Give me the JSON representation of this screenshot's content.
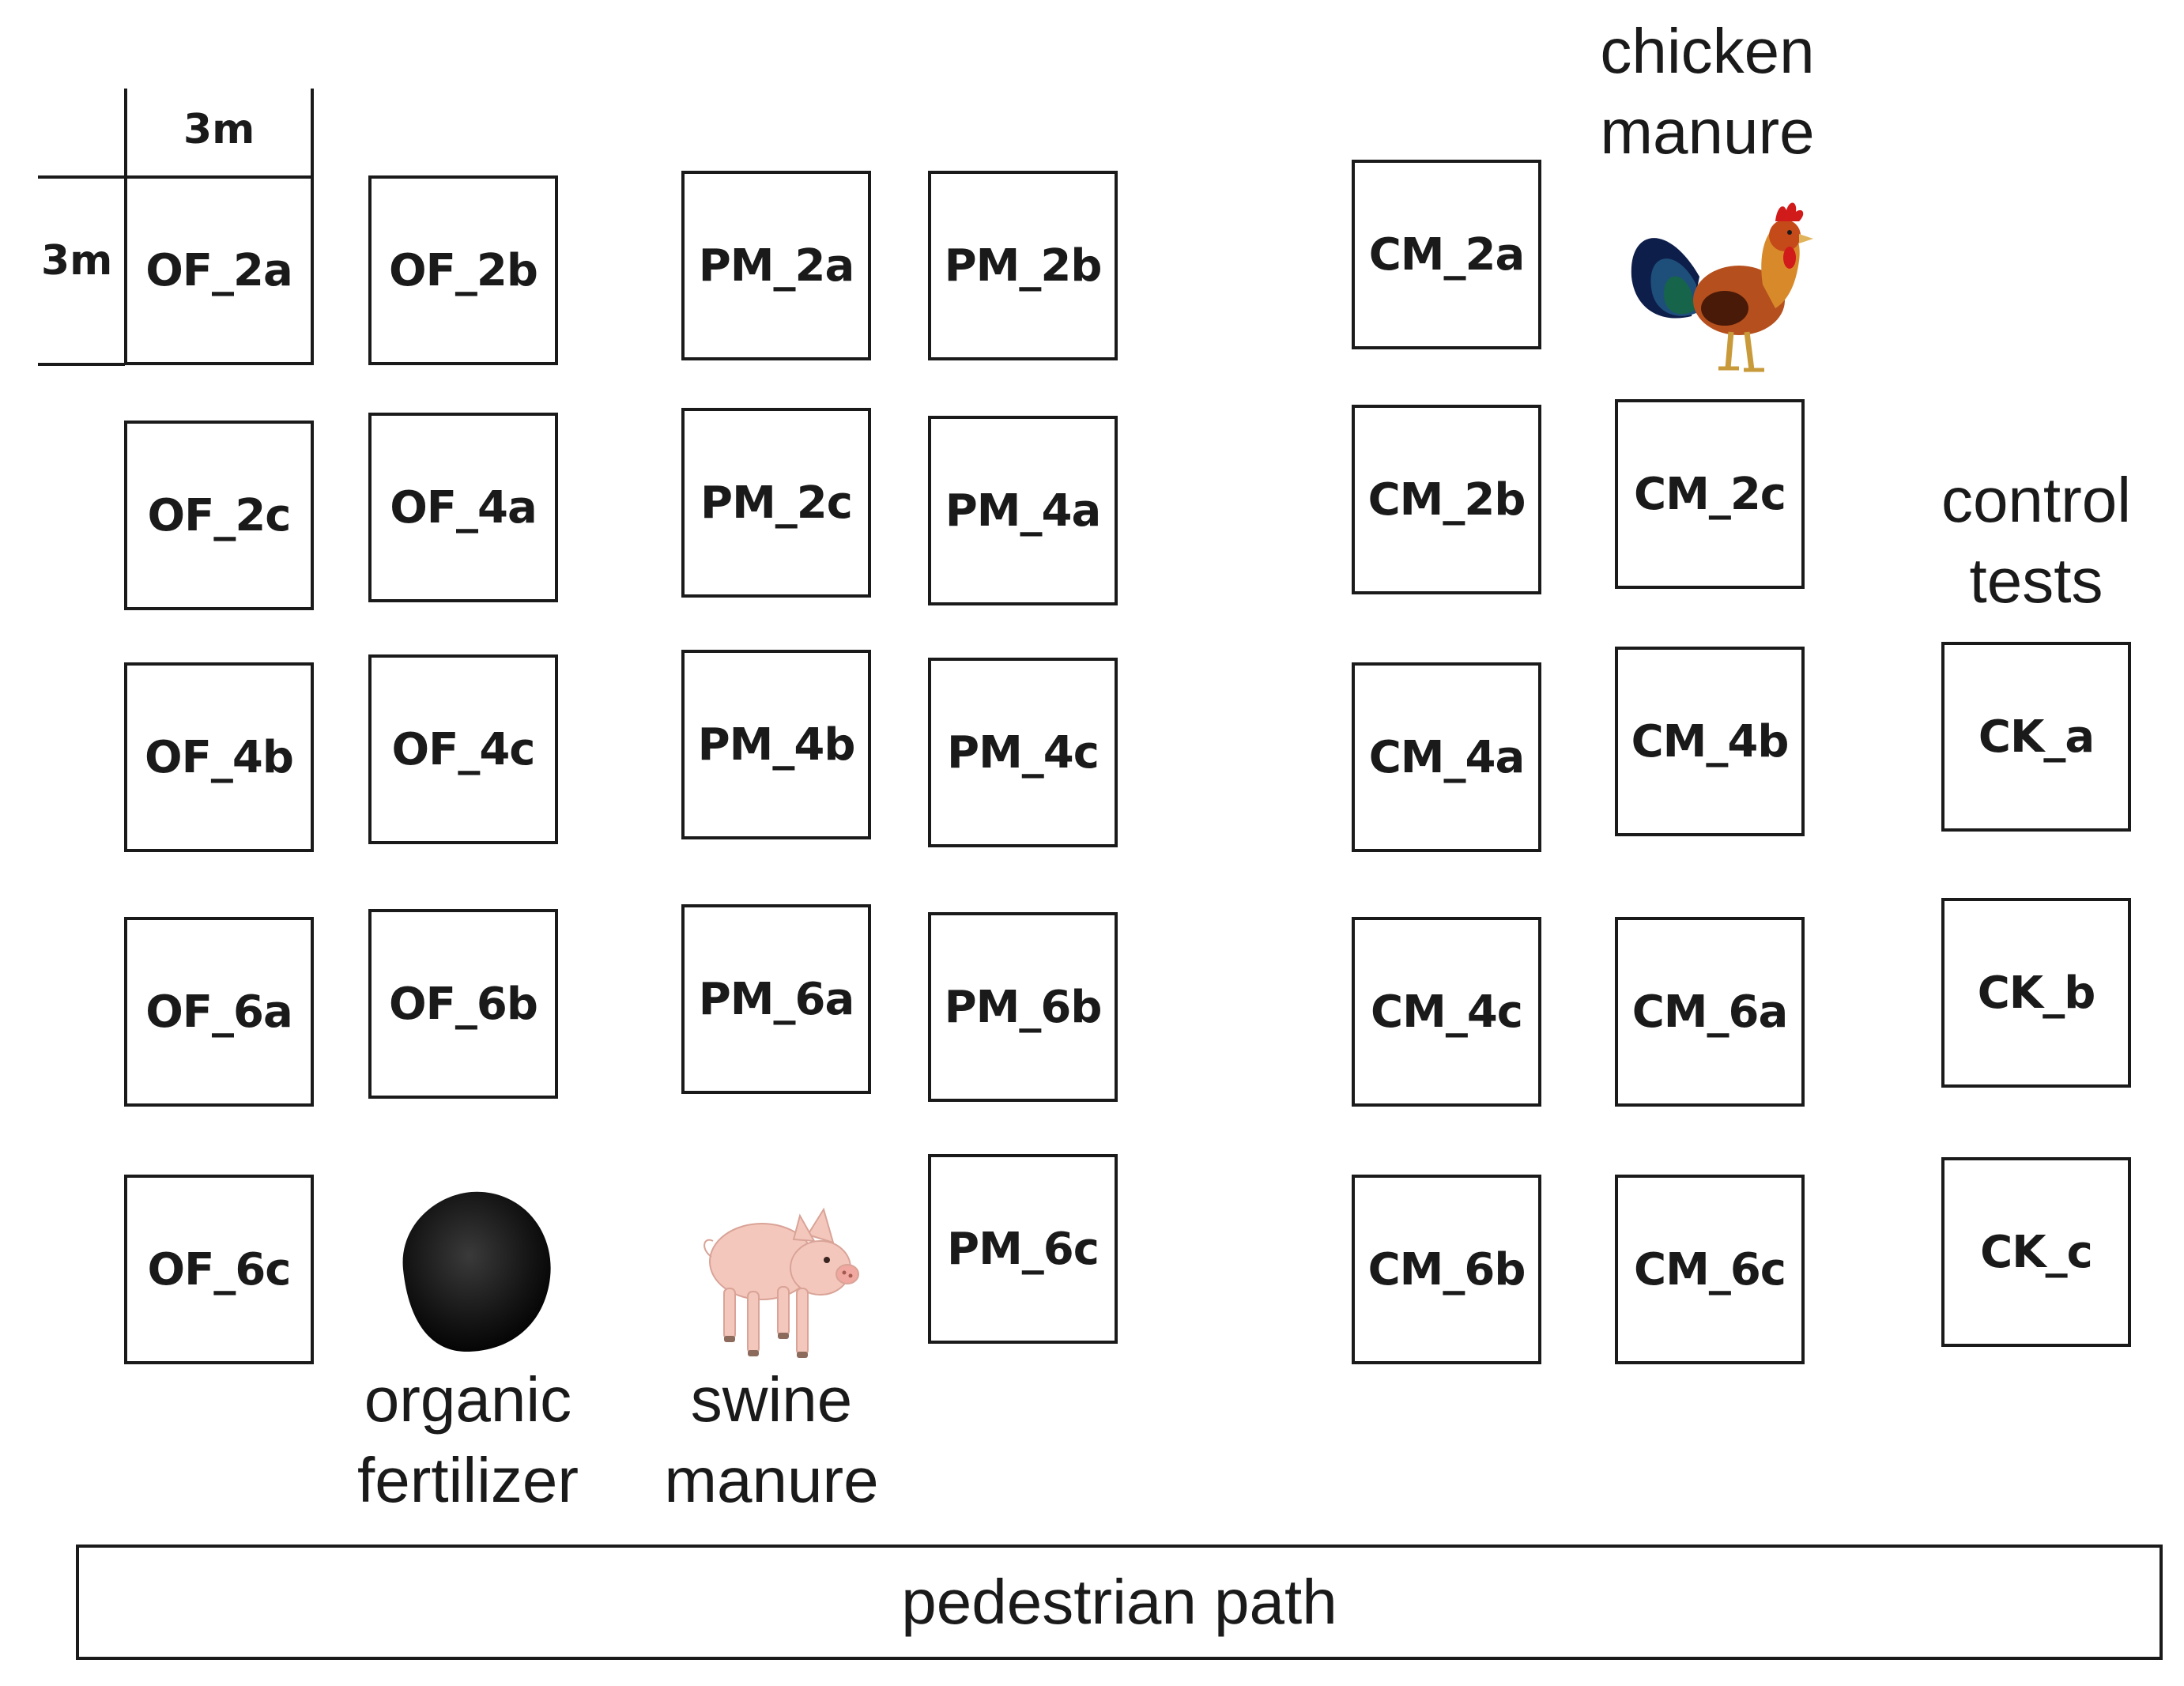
{
  "scale": {
    "width_label": "3m",
    "height_label": "3m"
  },
  "plots": [
    {
      "id": "OF_2a"
    },
    {
      "id": "OF_2b"
    },
    {
      "id": "OF_2c"
    },
    {
      "id": "OF_4a"
    },
    {
      "id": "OF_4b"
    },
    {
      "id": "OF_4c"
    },
    {
      "id": "OF_6a"
    },
    {
      "id": "OF_6b"
    },
    {
      "id": "OF_6c"
    },
    {
      "id": "PM_2a"
    },
    {
      "id": "PM_2b"
    },
    {
      "id": "PM_2c"
    },
    {
      "id": "PM_4a"
    },
    {
      "id": "PM_4b"
    },
    {
      "id": "PM_4c"
    },
    {
      "id": "PM_6a"
    },
    {
      "id": "PM_6b"
    },
    {
      "id": "PM_6c"
    },
    {
      "id": "CM_2a"
    },
    {
      "id": "CM_2b"
    },
    {
      "id": "CM_2c"
    },
    {
      "id": "CM_4a"
    },
    {
      "id": "CM_4b"
    },
    {
      "id": "CM_4c"
    },
    {
      "id": "CM_6a"
    },
    {
      "id": "CM_6b"
    },
    {
      "id": "CM_6c"
    },
    {
      "id": "CK_a"
    },
    {
      "id": "CK_b"
    },
    {
      "id": "CK_c"
    }
  ],
  "captions": {
    "organic_fertilizer": [
      "organic",
      "fertilizer"
    ],
    "swine_manure": [
      "swine",
      "manure"
    ],
    "chicken_manure": [
      "chicken",
      "manure"
    ],
    "control_tests": [
      "control",
      "tests"
    ]
  },
  "path_label": "pedestrian path",
  "icons": {
    "fertilizer": "organic-fertilizer-pellet-icon",
    "pig": "pig-icon",
    "rooster": "rooster-icon"
  }
}
